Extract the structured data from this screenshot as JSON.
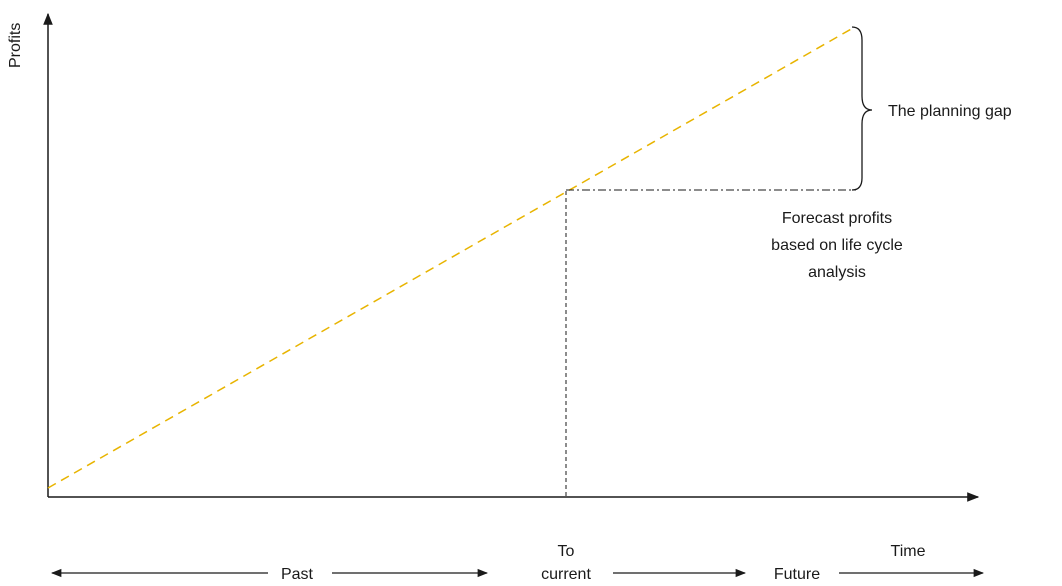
{
  "axes": {
    "y_label": "Profits",
    "x_label": "Time"
  },
  "annotations": {
    "planning_gap": "The planning gap",
    "forecast": [
      "Forecast profits",
      "based on life cycle",
      "analysis"
    ]
  },
  "timeline": {
    "past": "Past",
    "current": [
      "To",
      "current"
    ],
    "future": "Future"
  },
  "colors": {
    "trend_line": "#e8b400",
    "axis": "#1a1a1a"
  },
  "chart_data": {
    "type": "line",
    "title": "",
    "xlabel": "Time",
    "ylabel": "Profits",
    "series": [],
    "annotations": [
      "The planning gap",
      "Forecast profits based on life cycle analysis"
    ]
  }
}
